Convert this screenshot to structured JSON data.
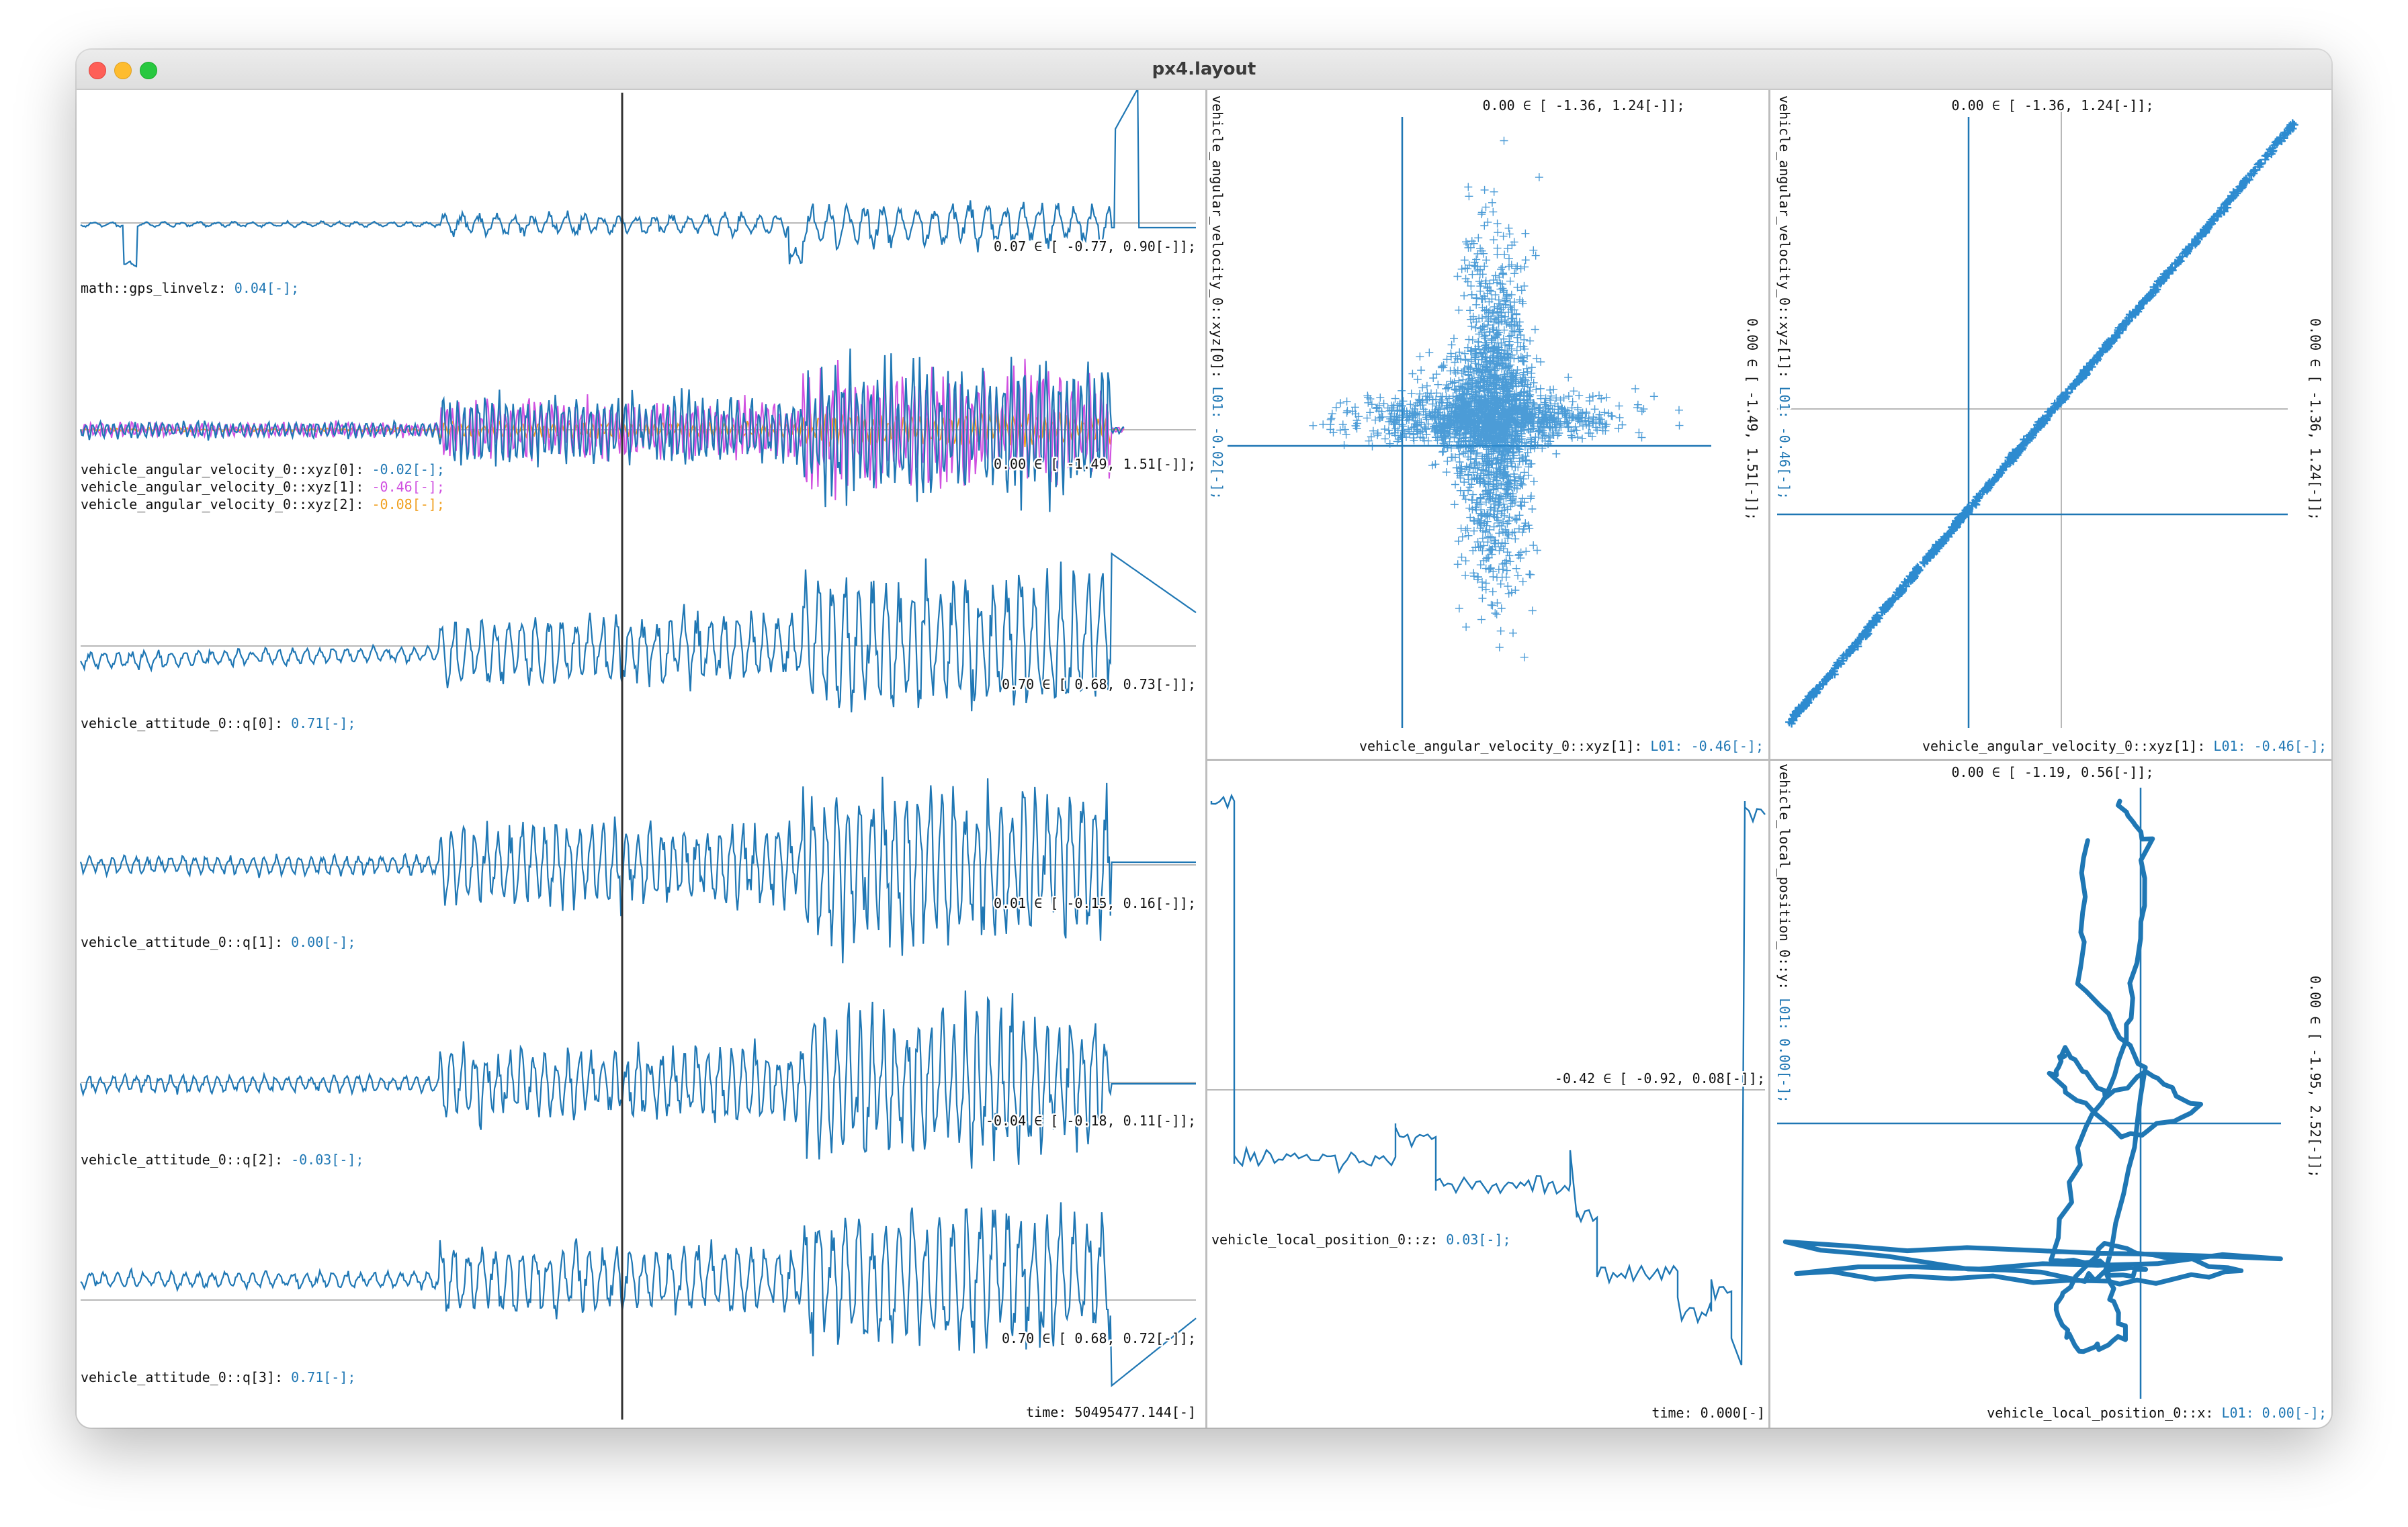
{
  "window": {
    "title": "px4.layout"
  },
  "colors": {
    "series_primary": "#1f77b4",
    "series_secondary": "#f0a020",
    "series_tertiary": "#d050e0",
    "cursor": "#333333"
  },
  "timeseries": {
    "time_label": "time: 50495477.144[-]",
    "rows": [
      {
        "label": "math::gps_linvelz: ",
        "value": "0.04[-];",
        "range": "0.07 ∈ [   -0.77,     0.90[-]];"
      },
      {
        "labels": [
          {
            "label": "vehicle_angular_velocity_0::xyz[0]: ",
            "value": "-0.02[-];"
          },
          {
            "label": "vehicle_angular_velocity_0::xyz[1]: ",
            "value": "-0.46[-];"
          },
          {
            "label": "vehicle_angular_velocity_0::xyz[2]: ",
            "value": "-0.08[-];"
          }
        ],
        "range": "0.00 ∈ [   -1.49,     1.51[-]];"
      },
      {
        "label": "vehicle_attitude_0::q[0]: ",
        "value": "0.71[-];",
        "range": "0.70 ∈ [    0.68,     0.73[-]];"
      },
      {
        "label": "vehicle_attitude_0::q[1]: ",
        "value": "0.00[-];",
        "range": "0.01 ∈ [   -0.15,     0.16[-]];"
      },
      {
        "label": "vehicle_attitude_0::q[2]: ",
        "value": "-0.03[-];",
        "range": "-0.04 ∈ [   -0.18,     0.11[-]];"
      },
      {
        "label": "vehicle_attitude_0::q[3]: ",
        "value": "0.71[-];",
        "range": "0.70 ∈ [    0.68,     0.72[-]];"
      }
    ]
  },
  "scatter1": {
    "x_label": "vehicle_angular_velocity_0::xyz[1]: ",
    "x_value": "L01: -0.46[-];",
    "y_label": "vehicle_angular_velocity_0::xyz[0]: ",
    "y_value": "L01: -0.02[-];",
    "x_range": "0.00 ∈ [   -1.36,     1.24[-]];",
    "y_range": "0.00 ∈ [   -1.49,     1.51[-]];"
  },
  "scatter2": {
    "x_label": "vehicle_angular_velocity_0::xyz[1]: ",
    "x_value": "L01: -0.46[-];",
    "y_label": "vehicle_angular_velocity_0::xyz[1]: ",
    "y_value": "L01: -0.46[-];",
    "x_range": "0.00 ∈ [   -1.36,     1.24[-]];",
    "y_range": "0.00 ∈ [   -1.36,     1.24[-]];"
  },
  "zplot": {
    "label": "vehicle_local_position_0::z: ",
    "value": "0.03[-];",
    "range": "-0.42 ∈ [   -0.92,     0.08[-]];",
    "time_label": "time: 0.000[-]"
  },
  "trajectory": {
    "x_label": "vehicle_local_position_0::x: ",
    "x_value": "L01: 0.00[-];",
    "y_label": "vehicle_local_position_0::y: ",
    "y_value": "L01: 0.00[-];",
    "x_range": "0.00 ∈ [   -1.19,     0.56[-]];",
    "y_range": "0.00 ∈ [   -1.95,     2.52[-]];"
  }
}
